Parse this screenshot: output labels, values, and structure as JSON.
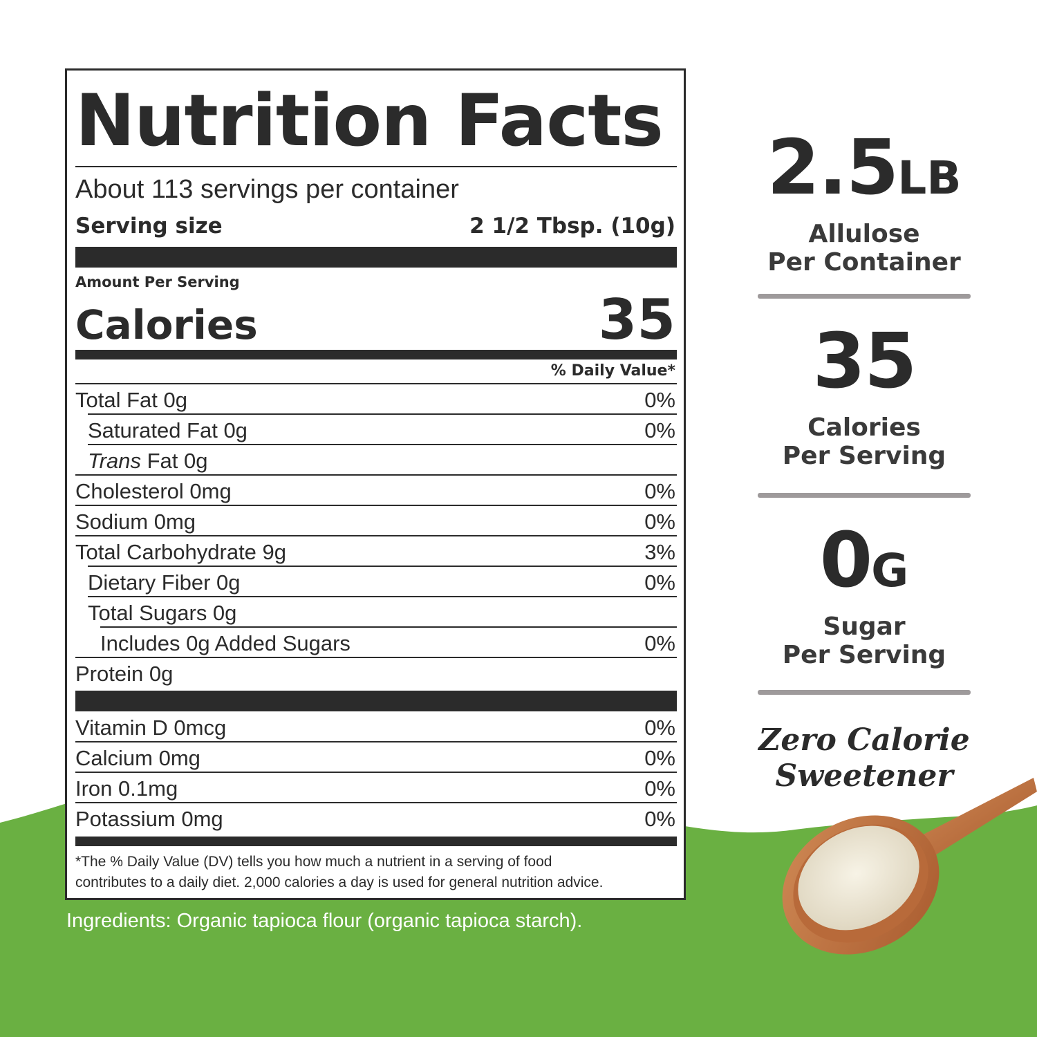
{
  "label": {
    "title": "Nutrition Facts",
    "servings_per_container": "About 113 servings per container",
    "serving_size_label": "Serving size",
    "serving_size_value": "2 1/2 Tbsp. (10g)",
    "amount_per_serving": "Amount Per Serving",
    "calories_label": "Calories",
    "calories_value": "35",
    "daily_value_header": "% Daily Value*",
    "rows": [
      {
        "name": "Total Fat  0g",
        "pct": "0%"
      },
      {
        "name": "Saturated Fat  0g",
        "pct": "0%"
      },
      {
        "name_italic": "Trans",
        "name": " Fat  0g",
        "pct": ""
      },
      {
        "name": "Cholesterol  0mg",
        "pct": "0%"
      },
      {
        "name": "Sodium   0mg",
        "pct": "0%"
      },
      {
        "name": "Total Carbohydrate  9g",
        "pct": "3%"
      },
      {
        "name": "Dietary Fiber  0g",
        "pct": "0%"
      },
      {
        "name": "Total Sugars  0g",
        "pct": ""
      },
      {
        "name": "Includes 0g Added Sugars",
        "pct": "0%"
      },
      {
        "name": "Protein  0g",
        "pct": ""
      }
    ],
    "vitamins": [
      {
        "name": "Vitamin D  0mcg",
        "pct": "0%"
      },
      {
        "name": "Calcium  0mg",
        "pct": "0%"
      },
      {
        "name": "Iron  0.1mg",
        "pct": "0%"
      },
      {
        "name": "Potassium 0mg",
        "pct": "0%"
      }
    ],
    "footnote_line1": "*The % Daily Value (DV) tells you how much a nutrient in a serving of food",
    "footnote_line2": "contributes to a daily diet. 2,000 calories a day is used for general nutrition advice."
  },
  "ingredients": "Ingredients: Organic tapioca flour (organic tapioca starch).",
  "stats": [
    {
      "big": "2.5",
      "unit": "LB",
      "line1": "Allulose",
      "line2": "Per Container"
    },
    {
      "big": "35",
      "unit": "",
      "line1": "Calories",
      "line2": "Per Serving"
    },
    {
      "big": "0",
      "unit": "G",
      "line1": "Sugar",
      "line2": "Per Serving"
    }
  ],
  "tagline_line1": "Zero Calorie",
  "tagline_line2": "Sweetener",
  "colors": {
    "green": "#6ab042",
    "text": "#2b2b2b",
    "divider": "#9e9a9b",
    "spoon": "#b9683a"
  }
}
